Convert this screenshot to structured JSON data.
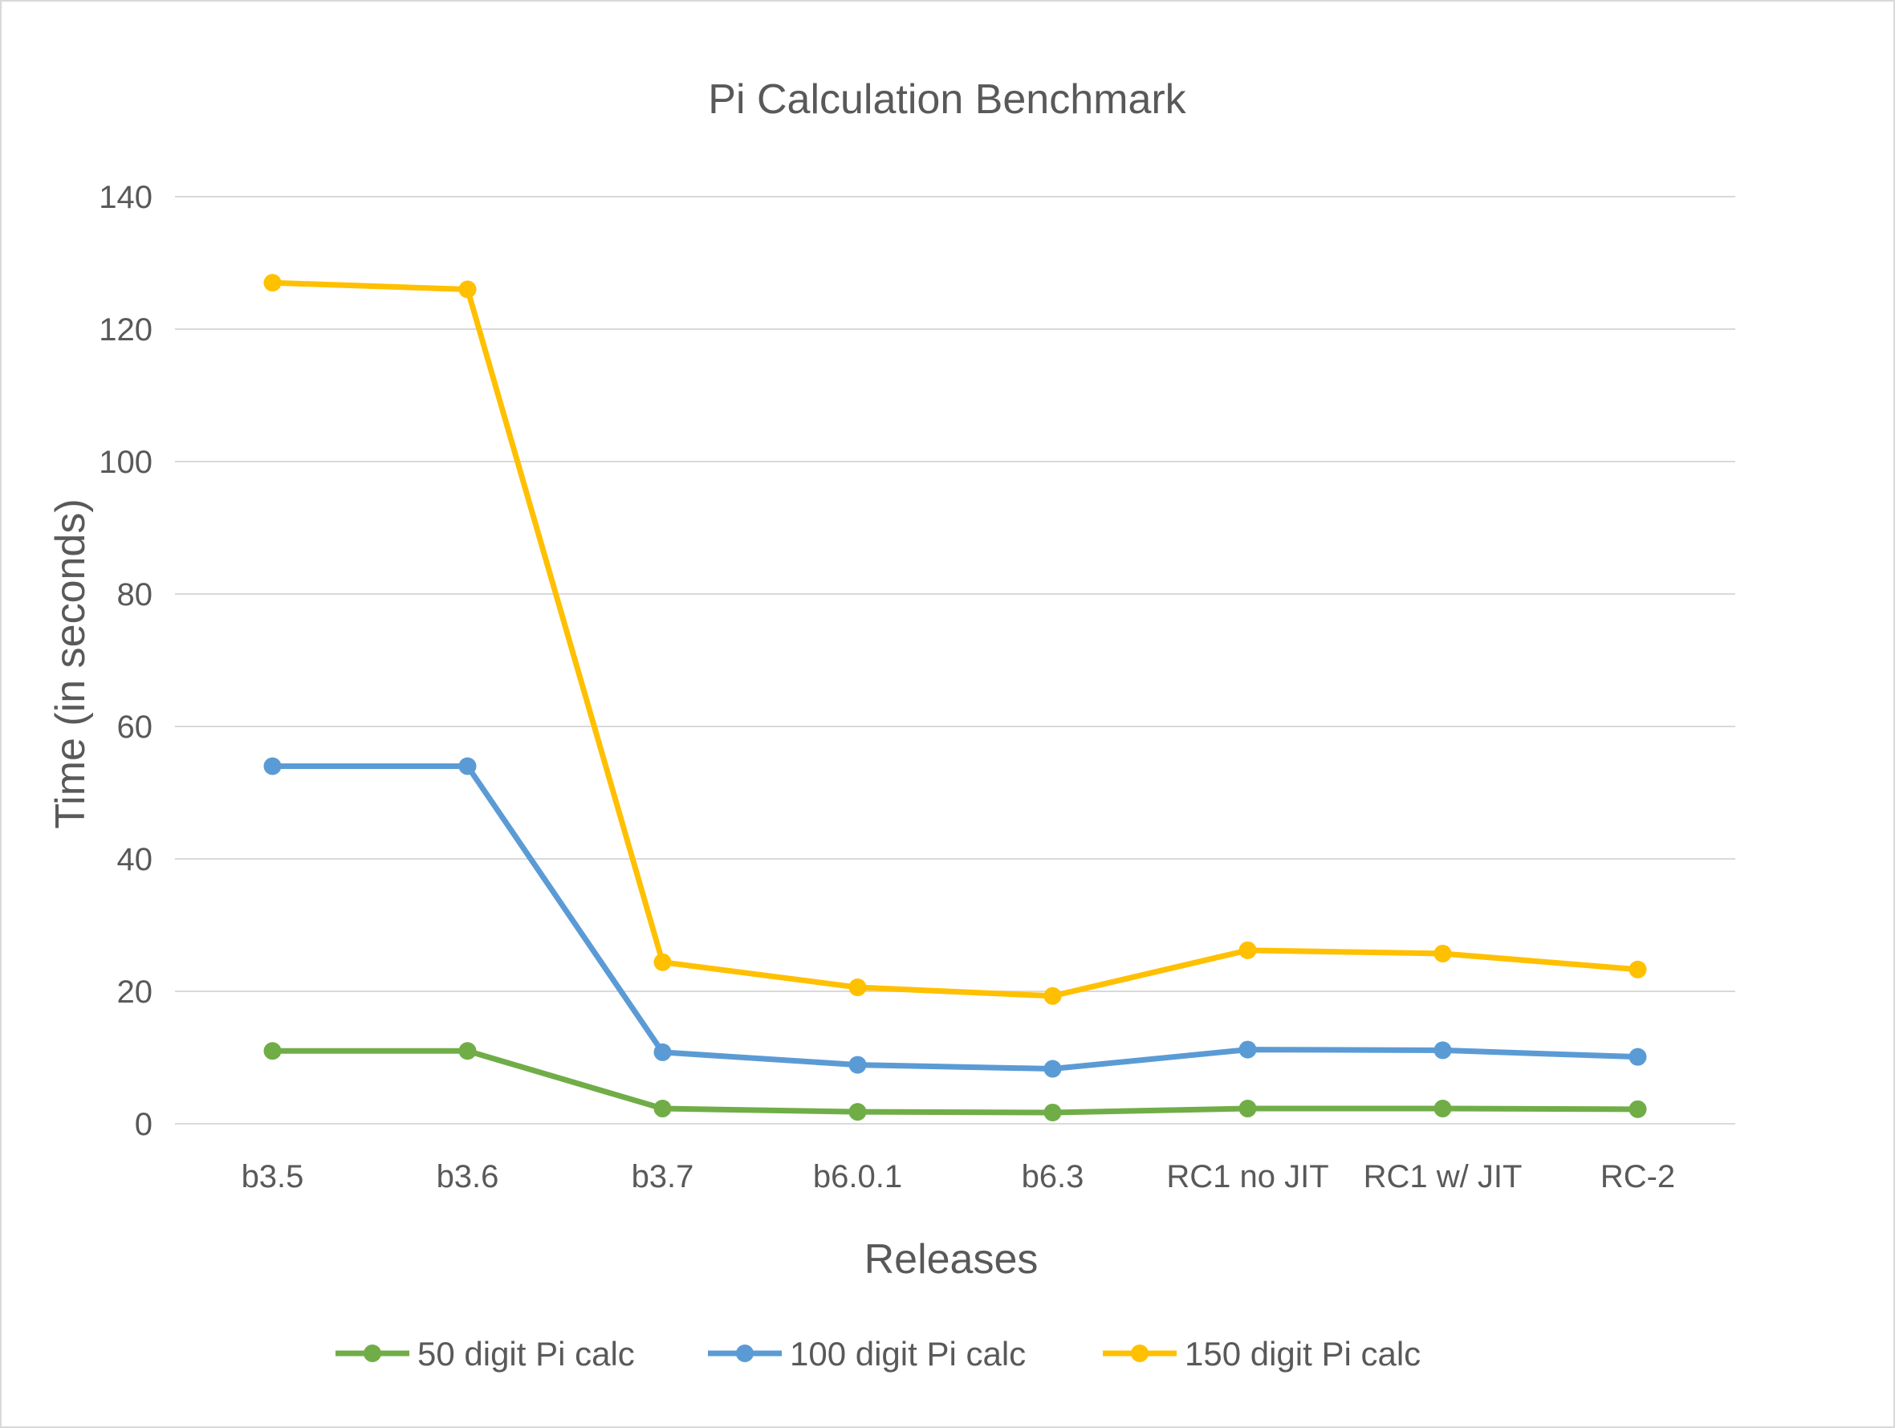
{
  "chart_data": {
    "type": "line",
    "title": "Pi Calculation Benchmark",
    "xlabel": "Releases",
    "ylabel": "Time (in seconds)",
    "categories": [
      "b3.5",
      "b3.6",
      "b3.7",
      "b6.0.1",
      "b6.3",
      "RC1 no JIT",
      "RC1 w/ JIT",
      "RC-2"
    ],
    "ylim": [
      0,
      140
    ],
    "yticks": [
      0,
      20,
      40,
      60,
      80,
      100,
      120,
      140
    ],
    "grid": true,
    "legend_position": "bottom",
    "series": [
      {
        "name": "50 digit Pi calc",
        "color": "#70ad47",
        "values": [
          11,
          11,
          2.3,
          1.8,
          1.7,
          2.3,
          2.3,
          2.2
        ]
      },
      {
        "name": "100 digit Pi calc",
        "color": "#5b9bd5",
        "values": [
          54,
          54,
          10.8,
          8.9,
          8.3,
          11.2,
          11.1,
          10.1
        ]
      },
      {
        "name": "150 digit Pi calc",
        "color": "#ffc000",
        "values": [
          127,
          126,
          24.4,
          20.6,
          19.3,
          26.2,
          25.7,
          23.3
        ]
      }
    ]
  }
}
